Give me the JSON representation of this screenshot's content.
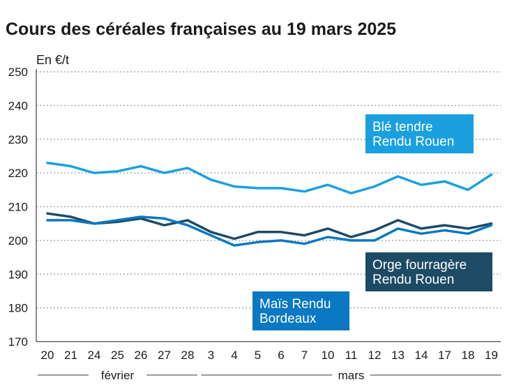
{
  "chart_data": {
    "type": "line",
    "title": "Cours des céréales françaises au 19 mars 2025",
    "ylabel": "En €/t",
    "xlabel": "",
    "ylim": [
      170,
      250
    ],
    "yticks": [
      170,
      180,
      190,
      200,
      210,
      220,
      230,
      240,
      250
    ],
    "grid": true,
    "categories": [
      "20",
      "21",
      "24",
      "25",
      "26",
      "27",
      "28",
      "3",
      "4",
      "5",
      "6",
      "7",
      "10",
      "11",
      "12",
      "13",
      "14",
      "17",
      "18",
      "19"
    ],
    "month_groups": [
      {
        "label": "février",
        "start": 0,
        "end": 6
      },
      {
        "label": "mars",
        "start": 7,
        "end": 19
      }
    ],
    "series": [
      {
        "name": "Blé tendre Rendu Rouen",
        "label_lines": [
          "Blé tendre",
          "Rendu Rouen"
        ],
        "color": "#1aa0de",
        "values": [
          223,
          222,
          220,
          220.5,
          222,
          220,
          221.5,
          218,
          216,
          215.5,
          215.5,
          214.5,
          216.5,
          214,
          216,
          219,
          216.5,
          217.5,
          215,
          219.5
        ]
      },
      {
        "name": "Orge fourragère Rendu Rouen",
        "label_lines": [
          "Orge fourragère",
          "Rendu Rouen"
        ],
        "color": "#1d4a64",
        "values": [
          208,
          207,
          205,
          205.5,
          206.5,
          204.5,
          206,
          202.5,
          200.5,
          202.5,
          202.5,
          201.5,
          203.5,
          201,
          203,
          206,
          203.5,
          204.5,
          203.5,
          205
        ]
      },
      {
        "name": "Maïs Rendu Bordeaux",
        "label_lines": [
          "Maïs Rendu",
          "Bordeaux"
        ],
        "color": "#0a78c2",
        "values": [
          206,
          206,
          205,
          206,
          207,
          206.5,
          204.5,
          201.5,
          198.5,
          199.5,
          200,
          199,
          201,
          200,
          200,
          203.5,
          202,
          203,
          202,
          204.5
        ]
      }
    ]
  }
}
